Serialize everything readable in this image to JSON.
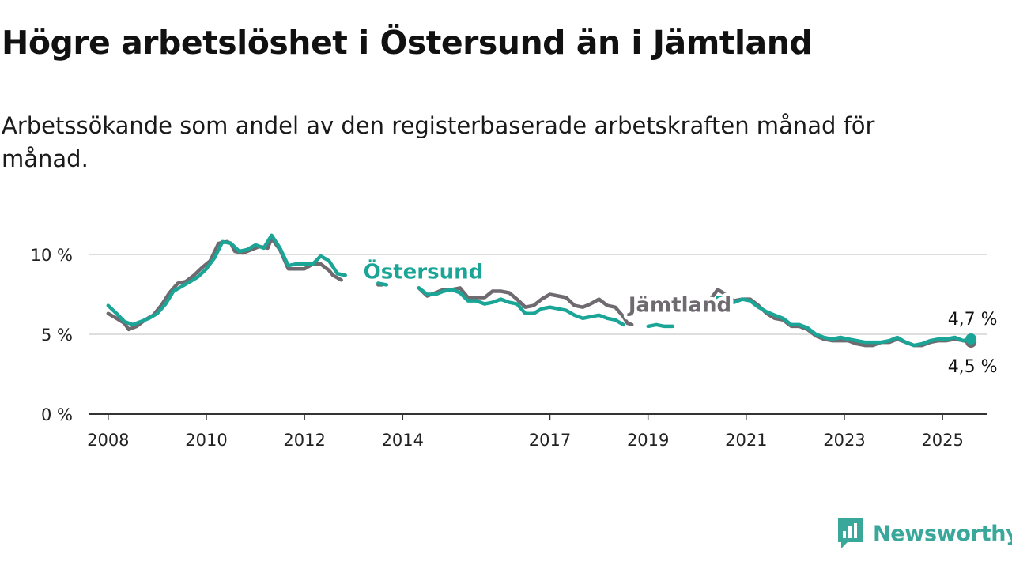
{
  "title": "Högre arbetslöshet i Östersund än i Jämtland",
  "subtitle": "Arbetssökande som andel av den registerbaserade arbetskraften månad för månad.",
  "brand": {
    "name": "Newsworthy",
    "icon": "newsworthy-logo-icon",
    "color": "#3aa79b"
  },
  "chart_data": {
    "type": "line",
    "title": "Högre arbetslöshet i Östersund än i Jämtland",
    "xlabel": "",
    "ylabel": "",
    "xlim": [
      2007.6,
      2025.9
    ],
    "ylim": [
      0,
      10
    ],
    "y_ticks": [
      0,
      5,
      10
    ],
    "y_tick_labels": [
      "0 %",
      "5 %",
      "10 %"
    ],
    "x_ticks": [
      2008,
      2010,
      2012,
      2014,
      2017,
      2019,
      2021,
      2023,
      2025
    ],
    "x_tick_labels": [
      "2008",
      "2010",
      "2012",
      "2014",
      "2017",
      "2019",
      "2021",
      "2023",
      "2025"
    ],
    "grid": "horizontal",
    "legend": "inline labels",
    "series": [
      {
        "name": "Jämtland",
        "color": "#6e6a70",
        "end_label": "4,5 %",
        "segments": [
          [
            [
              2008.0,
              6.3
            ],
            [
              2008.17,
              6.0
            ],
            [
              2008.33,
              5.7
            ],
            [
              2008.42,
              5.3
            ],
            [
              2008.58,
              5.5
            ],
            [
              2008.75,
              5.9
            ],
            [
              2008.92,
              6.2
            ],
            [
              2009.08,
              6.8
            ],
            [
              2009.25,
              7.6
            ],
            [
              2009.42,
              8.2
            ],
            [
              2009.58,
              8.3
            ],
            [
              2009.75,
              8.7
            ],
            [
              2009.92,
              9.2
            ],
            [
              2010.08,
              9.6
            ],
            [
              2010.25,
              10.7
            ],
            [
              2010.42,
              10.8
            ],
            [
              2010.5,
              10.7
            ],
            [
              2010.58,
              10.2
            ],
            [
              2010.75,
              10.1
            ],
            [
              2010.92,
              10.3
            ],
            [
              2011.08,
              10.5
            ],
            [
              2011.25,
              10.4
            ],
            [
              2011.33,
              11.0
            ],
            [
              2011.5,
              10.3
            ],
            [
              2011.67,
              9.1
            ],
            [
              2011.83,
              9.1
            ],
            [
              2012.0,
              9.1
            ],
            [
              2012.17,
              9.4
            ],
            [
              2012.33,
              9.4
            ],
            [
              2012.5,
              9.0
            ],
            [
              2012.58,
              8.7
            ],
            [
              2012.75,
              8.4
            ]
          ],
          [
            [
              2013.5,
              8.1
            ],
            [
              2013.58,
              8.1
            ]
          ],
          [
            [
              2014.33,
              7.9
            ],
            [
              2014.5,
              7.4
            ],
            [
              2014.67,
              7.6
            ],
            [
              2014.83,
              7.8
            ],
            [
              2015.0,
              7.8
            ],
            [
              2015.17,
              7.9
            ],
            [
              2015.33,
              7.3
            ],
            [
              2015.5,
              7.3
            ],
            [
              2015.67,
              7.3
            ],
            [
              2015.83,
              7.7
            ],
            [
              2016.0,
              7.7
            ],
            [
              2016.17,
              7.6
            ],
            [
              2016.33,
              7.2
            ],
            [
              2016.5,
              6.7
            ],
            [
              2016.67,
              6.8
            ],
            [
              2016.83,
              7.2
            ],
            [
              2017.0,
              7.5
            ],
            [
              2017.17,
              7.4
            ],
            [
              2017.33,
              7.3
            ],
            [
              2017.5,
              6.8
            ],
            [
              2017.67,
              6.7
            ],
            [
              2017.83,
              6.9
            ],
            [
              2018.0,
              7.2
            ],
            [
              2018.17,
              6.8
            ],
            [
              2018.33,
              6.7
            ],
            [
              2018.5,
              6.1
            ]
          ],
          [
            [
              2018.5,
              6.1
            ],
            [
              2018.58,
              5.7
            ],
            [
              2018.67,
              5.6
            ]
          ],
          [
            [
              2020.25,
              7.1
            ],
            [
              2020.42,
              7.8
            ],
            [
              2020.58,
              7.5
            ],
            [
              2020.75,
              7.1
            ],
            [
              2020.92,
              7.2
            ],
            [
              2021.08,
              7.2
            ],
            [
              2021.25,
              6.8
            ],
            [
              2021.42,
              6.3
            ],
            [
              2021.58,
              6.0
            ],
            [
              2021.75,
              5.9
            ],
            [
              2021.92,
              5.5
            ],
            [
              2022.08,
              5.5
            ],
            [
              2022.25,
              5.3
            ],
            [
              2022.42,
              4.9
            ],
            [
              2022.58,
              4.7
            ],
            [
              2022.75,
              4.6
            ],
            [
              2022.92,
              4.6
            ],
            [
              2023.08,
              4.6
            ],
            [
              2023.25,
              4.4
            ],
            [
              2023.42,
              4.3
            ],
            [
              2023.58,
              4.3
            ],
            [
              2023.75,
              4.5
            ],
            [
              2023.92,
              4.5
            ],
            [
              2024.08,
              4.7
            ],
            [
              2024.25,
              4.5
            ],
            [
              2024.42,
              4.3
            ],
            [
              2024.58,
              4.3
            ],
            [
              2024.75,
              4.5
            ],
            [
              2024.92,
              4.6
            ],
            [
              2025.08,
              4.6
            ],
            [
              2025.25,
              4.7
            ],
            [
              2025.42,
              4.6
            ],
            [
              2025.58,
              4.5
            ]
          ]
        ]
      },
      {
        "name": "Östersund",
        "color": "#1ba597",
        "end_label": "4,7 %",
        "segments": [
          [
            [
              2008.0,
              6.8
            ],
            [
              2008.17,
              6.3
            ],
            [
              2008.33,
              5.8
            ],
            [
              2008.5,
              5.6
            ],
            [
              2008.67,
              5.8
            ],
            [
              2008.83,
              6.0
            ],
            [
              2009.0,
              6.3
            ],
            [
              2009.17,
              6.9
            ],
            [
              2009.33,
              7.7
            ],
            [
              2009.5,
              8.0
            ],
            [
              2009.67,
              8.3
            ],
            [
              2009.83,
              8.6
            ],
            [
              2010.0,
              9.1
            ],
            [
              2010.17,
              9.8
            ],
            [
              2010.33,
              10.8
            ],
            [
              2010.5,
              10.7
            ],
            [
              2010.67,
              10.2
            ],
            [
              2010.83,
              10.3
            ],
            [
              2011.0,
              10.6
            ],
            [
              2011.17,
              10.4
            ],
            [
              2011.33,
              11.2
            ],
            [
              2011.5,
              10.4
            ],
            [
              2011.67,
              9.3
            ],
            [
              2011.83,
              9.4
            ],
            [
              2012.0,
              9.4
            ],
            [
              2012.17,
              9.4
            ],
            [
              2012.33,
              9.9
            ],
            [
              2012.5,
              9.6
            ],
            [
              2012.67,
              8.8
            ],
            [
              2012.83,
              8.7
            ]
          ],
          [
            [
              2013.5,
              8.2
            ],
            [
              2013.67,
              8.1
            ]
          ],
          [
            [
              2014.33,
              7.9
            ],
            [
              2014.5,
              7.5
            ],
            [
              2014.67,
              7.5
            ],
            [
              2014.83,
              7.7
            ],
            [
              2015.0,
              7.8
            ],
            [
              2015.17,
              7.6
            ],
            [
              2015.33,
              7.1
            ],
            [
              2015.5,
              7.1
            ],
            [
              2015.67,
              6.9
            ],
            [
              2015.83,
              7.0
            ],
            [
              2016.0,
              7.2
            ],
            [
              2016.17,
              7.0
            ],
            [
              2016.33,
              6.9
            ],
            [
              2016.5,
              6.3
            ],
            [
              2016.67,
              6.3
            ],
            [
              2016.83,
              6.6
            ],
            [
              2017.0,
              6.7
            ],
            [
              2017.17,
              6.6
            ],
            [
              2017.33,
              6.5
            ],
            [
              2017.5,
              6.2
            ],
            [
              2017.67,
              6.0
            ],
            [
              2017.83,
              6.1
            ],
            [
              2018.0,
              6.2
            ],
            [
              2018.17,
              6.0
            ],
            [
              2018.33,
              5.9
            ],
            [
              2018.5,
              5.6
            ]
          ],
          [
            [
              2019.0,
              5.5
            ],
            [
              2019.17,
              5.6
            ],
            [
              2019.33,
              5.5
            ],
            [
              2019.5,
              5.5
            ]
          ],
          [
            [
              2020.42,
              7.3
            ],
            [
              2020.58,
              7.2
            ],
            [
              2020.75,
              7.0
            ],
            [
              2020.92,
              7.2
            ],
            [
              2021.08,
              7.1
            ],
            [
              2021.25,
              6.7
            ],
            [
              2021.42,
              6.4
            ],
            [
              2021.58,
              6.2
            ],
            [
              2021.75,
              6.0
            ],
            [
              2021.92,
              5.6
            ],
            [
              2022.08,
              5.6
            ],
            [
              2022.25,
              5.4
            ],
            [
              2022.42,
              5.0
            ],
            [
              2022.58,
              4.8
            ],
            [
              2022.75,
              4.7
            ],
            [
              2022.92,
              4.8
            ],
            [
              2023.08,
              4.7
            ],
            [
              2023.25,
              4.6
            ],
            [
              2023.42,
              4.5
            ],
            [
              2023.58,
              4.5
            ],
            [
              2023.75,
              4.5
            ],
            [
              2023.92,
              4.6
            ],
            [
              2024.08,
              4.8
            ],
            [
              2024.25,
              4.5
            ],
            [
              2024.42,
              4.3
            ],
            [
              2024.58,
              4.4
            ],
            [
              2024.75,
              4.6
            ],
            [
              2024.92,
              4.7
            ],
            [
              2025.08,
              4.7
            ],
            [
              2025.25,
              4.8
            ],
            [
              2025.42,
              4.6
            ],
            [
              2025.58,
              4.7
            ]
          ]
        ]
      }
    ],
    "annotations": [
      {
        "text": "Östersund",
        "series": "Östersund",
        "x": 2013.2,
        "y": 8.5
      },
      {
        "text": "Jämtland",
        "series": "Jämtland",
        "x": 2018.6,
        "y": 6.4
      }
    ]
  }
}
